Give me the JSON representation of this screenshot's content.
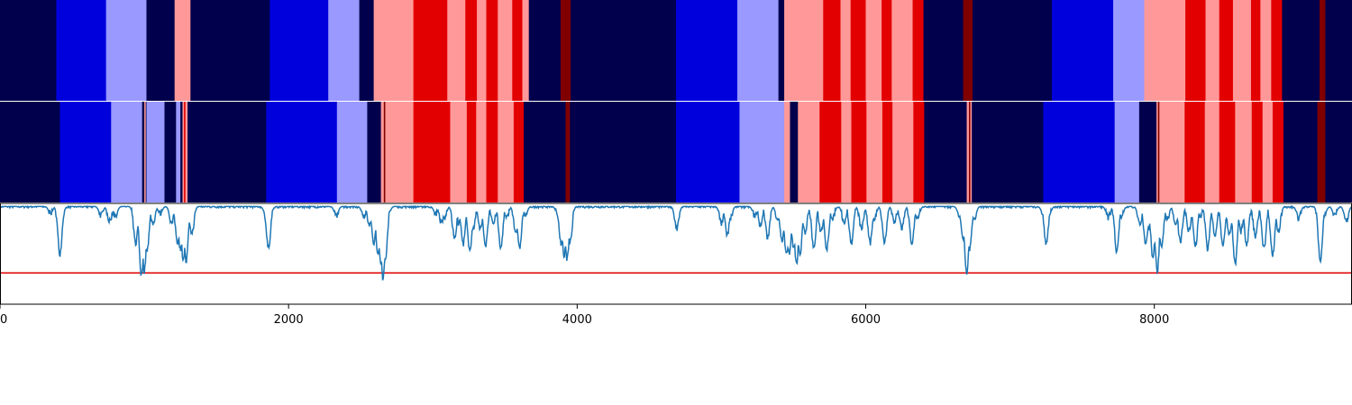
{
  "chart_data": {
    "type": "heatmap",
    "title": "",
    "xlabel": "",
    "ylabel": "",
    "xlim": [
      0,
      9370
    ],
    "xticks": [
      0,
      2000,
      4000,
      6000,
      8000
    ],
    "xtick_labels": [
      "0",
      "2000",
      "4000",
      "6000",
      "8000"
    ],
    "palette": {
      "0": "#00004c",
      "1": "#0000dd",
      "2": "#9999ff",
      "3": "#ff9999",
      "4": "#e30000",
      "5": "#800000"
    },
    "strips": [
      {
        "segments": [
          [
            0,
            390,
            0
          ],
          [
            390,
            735,
            1
          ],
          [
            735,
            1015,
            2
          ],
          [
            1015,
            1210,
            0
          ],
          [
            1210,
            1320,
            3
          ],
          [
            1320,
            1870,
            0
          ],
          [
            1870,
            2275,
            1
          ],
          [
            2275,
            2490,
            2
          ],
          [
            2490,
            2590,
            0
          ],
          [
            2590,
            2865,
            3
          ],
          [
            2865,
            3100,
            4
          ],
          [
            3100,
            3225,
            3
          ],
          [
            3225,
            3305,
            4
          ],
          [
            3305,
            3370,
            3
          ],
          [
            3370,
            3450,
            4
          ],
          [
            3450,
            3550,
            3
          ],
          [
            3550,
            3620,
            4
          ],
          [
            3620,
            3665,
            3
          ],
          [
            3665,
            3885,
            0
          ],
          [
            3885,
            3955,
            5
          ],
          [
            3955,
            4685,
            0
          ],
          [
            4685,
            5110,
            1
          ],
          [
            5110,
            5395,
            2
          ],
          [
            5395,
            5435,
            0
          ],
          [
            5435,
            5705,
            3
          ],
          [
            5705,
            5825,
            4
          ],
          [
            5825,
            5895,
            3
          ],
          [
            5895,
            6000,
            4
          ],
          [
            6000,
            6110,
            3
          ],
          [
            6110,
            6180,
            4
          ],
          [
            6180,
            6325,
            3
          ],
          [
            6325,
            6400,
            4
          ],
          [
            6400,
            6675,
            0
          ],
          [
            6675,
            6740,
            5
          ],
          [
            6740,
            7290,
            0
          ],
          [
            7290,
            7715,
            1
          ],
          [
            7715,
            7930,
            2
          ],
          [
            7930,
            8215,
            3
          ],
          [
            8215,
            8355,
            4
          ],
          [
            8355,
            8450,
            3
          ],
          [
            8450,
            8545,
            4
          ],
          [
            8545,
            8670,
            3
          ],
          [
            8670,
            8735,
            4
          ],
          [
            8735,
            8810,
            3
          ],
          [
            8810,
            8885,
            4
          ],
          [
            8885,
            9145,
            0
          ],
          [
            9145,
            9185,
            5
          ],
          [
            9185,
            9370,
            0
          ]
        ]
      },
      {
        "segments": [
          [
            0,
            415,
            0
          ],
          [
            415,
            770,
            1
          ],
          [
            770,
            985,
            2
          ],
          [
            985,
            1000,
            0
          ],
          [
            1000,
            1010,
            3
          ],
          [
            1010,
            1015,
            0
          ],
          [
            1015,
            1140,
            2
          ],
          [
            1140,
            1220,
            0
          ],
          [
            1220,
            1250,
            2
          ],
          [
            1250,
            1265,
            0
          ],
          [
            1265,
            1275,
            3
          ],
          [
            1275,
            1285,
            4
          ],
          [
            1285,
            1300,
            3
          ],
          [
            1300,
            1845,
            0
          ],
          [
            1845,
            2335,
            1
          ],
          [
            2335,
            2545,
            2
          ],
          [
            2545,
            2640,
            0
          ],
          [
            2640,
            2660,
            3
          ],
          [
            2660,
            2670,
            5
          ],
          [
            2670,
            2690,
            3
          ],
          [
            2690,
            2865,
            3
          ],
          [
            2865,
            3120,
            4
          ],
          [
            3120,
            3235,
            3
          ],
          [
            3235,
            3300,
            4
          ],
          [
            3300,
            3370,
            3
          ],
          [
            3370,
            3450,
            4
          ],
          [
            3450,
            3560,
            3
          ],
          [
            3560,
            3630,
            4
          ],
          [
            3630,
            3920,
            0
          ],
          [
            3920,
            3950,
            5
          ],
          [
            3950,
            4685,
            0
          ],
          [
            4685,
            5125,
            1
          ],
          [
            5125,
            5435,
            2
          ],
          [
            5435,
            5475,
            3
          ],
          [
            5475,
            5530,
            0
          ],
          [
            5530,
            5680,
            3
          ],
          [
            5680,
            5830,
            4
          ],
          [
            5830,
            5900,
            3
          ],
          [
            5900,
            6005,
            4
          ],
          [
            6005,
            6115,
            3
          ],
          [
            6115,
            6185,
            4
          ],
          [
            6185,
            6330,
            3
          ],
          [
            6330,
            6405,
            4
          ],
          [
            6405,
            6700,
            0
          ],
          [
            6700,
            6715,
            3
          ],
          [
            6715,
            6725,
            5
          ],
          [
            6725,
            6735,
            3
          ],
          [
            6735,
            7230,
            0
          ],
          [
            7230,
            7725,
            1
          ],
          [
            7725,
            7895,
            2
          ],
          [
            7895,
            8015,
            0
          ],
          [
            8015,
            8025,
            3
          ],
          [
            8025,
            8035,
            5
          ],
          [
            8035,
            8210,
            3
          ],
          [
            8210,
            8350,
            4
          ],
          [
            8350,
            8450,
            3
          ],
          [
            8450,
            8560,
            4
          ],
          [
            8560,
            8675,
            3
          ],
          [
            8675,
            8750,
            4
          ],
          [
            8750,
            8820,
            3
          ],
          [
            8820,
            8895,
            4
          ],
          [
            8895,
            9130,
            0
          ],
          [
            9130,
            9185,
            5
          ],
          [
            9185,
            9370,
            0
          ]
        ]
      }
    ],
    "line": {
      "ylim": [
        0,
        1
      ],
      "threshold": 0.31,
      "threshold_color": "#e00000",
      "color": "#1f77b4",
      "baseline": 0.97,
      "dips": [
        [
          350,
          0.9
        ],
        [
          415,
          0.5
        ],
        [
          430,
          0.88
        ],
        [
          700,
          0.88
        ],
        [
          760,
          0.82
        ],
        [
          800,
          0.88
        ],
        [
          940,
          0.6
        ],
        [
          980,
          0.28
        ],
        [
          1000,
          0.33
        ],
        [
          1020,
          0.55
        ],
        [
          1060,
          0.8
        ],
        [
          1110,
          0.9
        ],
        [
          1190,
          0.8
        ],
        [
          1230,
          0.62
        ],
        [
          1250,
          0.55
        ],
        [
          1270,
          0.45
        ],
        [
          1290,
          0.42
        ],
        [
          1310,
          0.78
        ],
        [
          1330,
          0.7
        ],
        [
          1840,
          0.9
        ],
        [
          1860,
          0.55
        ],
        [
          1875,
          0.9
        ],
        [
          2330,
          0.88
        ],
        [
          2520,
          0.88
        ],
        [
          2560,
          0.8
        ],
        [
          2590,
          0.6
        ],
        [
          2620,
          0.48
        ],
        [
          2640,
          0.4
        ],
        [
          2655,
          0.25
        ],
        [
          2670,
          0.45
        ],
        [
          2690,
          0.88
        ],
        [
          3020,
          0.9
        ],
        [
          3060,
          0.8
        ],
        [
          3080,
          0.85
        ],
        [
          3150,
          0.65
        ],
        [
          3180,
          0.8
        ],
        [
          3210,
          0.6
        ],
        [
          3255,
          0.52
        ],
        [
          3280,
          0.75
        ],
        [
          3330,
          0.75
        ],
        [
          3365,
          0.58
        ],
        [
          3420,
          0.8
        ],
        [
          3470,
          0.55
        ],
        [
          3510,
          0.85
        ],
        [
          3575,
          0.72
        ],
        [
          3600,
          0.55
        ],
        [
          3640,
          0.88
        ],
        [
          3870,
          0.85
        ],
        [
          3890,
          0.6
        ],
        [
          3910,
          0.48
        ],
        [
          3930,
          0.45
        ],
        [
          3950,
          0.6
        ],
        [
          4690,
          0.75
        ],
        [
          5000,
          0.8
        ],
        [
          5040,
          0.68
        ],
        [
          5060,
          0.85
        ],
        [
          5230,
          0.88
        ],
        [
          5270,
          0.78
        ],
        [
          5320,
          0.66
        ],
        [
          5390,
          0.85
        ],
        [
          5420,
          0.62
        ],
        [
          5450,
          0.48
        ],
        [
          5470,
          0.5
        ],
        [
          5500,
          0.55
        ],
        [
          5520,
          0.4
        ],
        [
          5545,
          0.5
        ],
        [
          5580,
          0.72
        ],
        [
          5640,
          0.55
        ],
        [
          5690,
          0.72
        ],
        [
          5730,
          0.55
        ],
        [
          5770,
          0.85
        ],
        [
          5850,
          0.82
        ],
        [
          5900,
          0.6
        ],
        [
          5970,
          0.75
        ],
        [
          6030,
          0.6
        ],
        [
          6060,
          0.85
        ],
        [
          6130,
          0.62
        ],
        [
          6200,
          0.82
        ],
        [
          6250,
          0.75
        ],
        [
          6320,
          0.6
        ],
        [
          6360,
          0.85
        ],
        [
          6650,
          0.88
        ],
        [
          6675,
          0.62
        ],
        [
          6700,
          0.3
        ],
        [
          6720,
          0.55
        ],
        [
          6750,
          0.82
        ],
        [
          7230,
          0.9
        ],
        [
          7250,
          0.6
        ],
        [
          7270,
          0.88
        ],
        [
          7680,
          0.86
        ],
        [
          7740,
          0.52
        ],
        [
          7770,
          0.85
        ],
        [
          7900,
          0.78
        ],
        [
          7940,
          0.6
        ],
        [
          7960,
          0.75
        ],
        [
          7990,
          0.45
        ],
        [
          8020,
          0.32
        ],
        [
          8050,
          0.58
        ],
        [
          8090,
          0.85
        ],
        [
          8150,
          0.78
        ],
        [
          8180,
          0.62
        ],
        [
          8240,
          0.72
        ],
        [
          8285,
          0.58
        ],
        [
          8320,
          0.88
        ],
        [
          8370,
          0.55
        ],
        [
          8420,
          0.68
        ],
        [
          8475,
          0.58
        ],
        [
          8520,
          0.68
        ],
        [
          8560,
          0.4
        ],
        [
          8600,
          0.72
        ],
        [
          8640,
          0.58
        ],
        [
          8700,
          0.68
        ],
        [
          8760,
          0.55
        ],
        [
          8820,
          0.48
        ],
        [
          8860,
          0.72
        ],
        [
          9000,
          0.85
        ],
        [
          9150,
          0.42
        ],
        [
          9180,
          0.9
        ],
        [
          9250,
          0.88
        ],
        [
          9330,
          0.82
        ]
      ]
    }
  }
}
